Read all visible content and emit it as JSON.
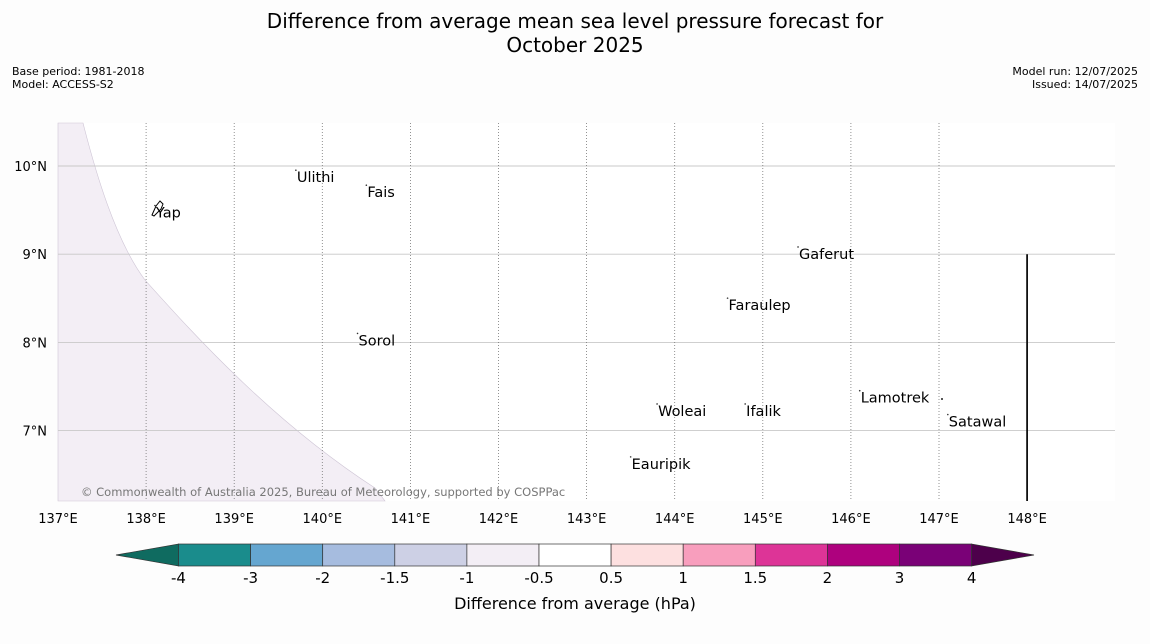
{
  "title": {
    "line1": "Difference from average mean sea level pressure forecast for",
    "line2": "October 2025"
  },
  "meta_left": {
    "base_period": "Base period: 1981-2018",
    "model": "Model: ACCESS-S2"
  },
  "meta_right": {
    "model_run": "Model run: 12/07/2025",
    "issued": "Issued: 14/07/2025"
  },
  "map": {
    "lon_labels": [
      "137°E",
      "138°E",
      "139°E",
      "140°E",
      "141°E",
      "142°E",
      "143°E",
      "144°E",
      "145°E",
      "146°E",
      "147°E",
      "148°E"
    ],
    "lon_values": [
      137,
      138,
      139,
      140,
      141,
      142,
      143,
      144,
      145,
      146,
      147,
      148
    ],
    "lat_labels": [
      "10°N",
      "9°N",
      "8°N",
      "7°N"
    ],
    "lat_values": [
      10,
      9,
      8,
      7
    ],
    "lon_range": [
      137,
      149
    ],
    "lat_range": [
      6.2,
      10.5
    ],
    "anomaly_region_color": "#f3eef5",
    "places": [
      {
        "name": "Ulithi",
        "lon": 139.7,
        "lat": 9.85
      },
      {
        "name": "Fais",
        "lon": 140.5,
        "lat": 9.68
      },
      {
        "name": "Yap",
        "lon": 138.1,
        "lat": 9.45
      },
      {
        "name": "Gaferut",
        "lon": 145.4,
        "lat": 8.98
      },
      {
        "name": "Faraulep",
        "lon": 144.6,
        "lat": 8.4
      },
      {
        "name": "Sorol",
        "lon": 140.4,
        "lat": 8.0
      },
      {
        "name": "Woleai",
        "lon": 143.8,
        "lat": 7.2
      },
      {
        "name": "Ifalik",
        "lon": 144.8,
        "lat": 7.2
      },
      {
        "name": "Lamotrek",
        "lon": 146.1,
        "lat": 7.35
      },
      {
        "name": "Satawal",
        "lon": 147.1,
        "lat": 7.08
      },
      {
        "name": "Eauripik",
        "lon": 143.5,
        "lat": 6.6
      }
    ],
    "copyright": "© Commonwealth of Australia 2025, Bureau of Meteorology, supported by COSPPac"
  },
  "colorbar": {
    "label": "Difference from average (hPa)",
    "ticks": [
      "-4",
      "-3",
      "-2",
      "-1.5",
      "-1",
      "-0.5",
      "0.5",
      "1",
      "1.5",
      "2",
      "3",
      "4"
    ],
    "colors": [
      "#1a8c8c",
      "#65a6d0",
      "#a6bcdf",
      "#cdd0e5",
      "#f3eef5",
      "#ffffff",
      "#fde0e0",
      "#f89ebd",
      "#dd3497",
      "#ae017e",
      "#7a0177"
    ],
    "low_extend_color": "#0f6b60",
    "high_extend_color": "#4d004b"
  }
}
